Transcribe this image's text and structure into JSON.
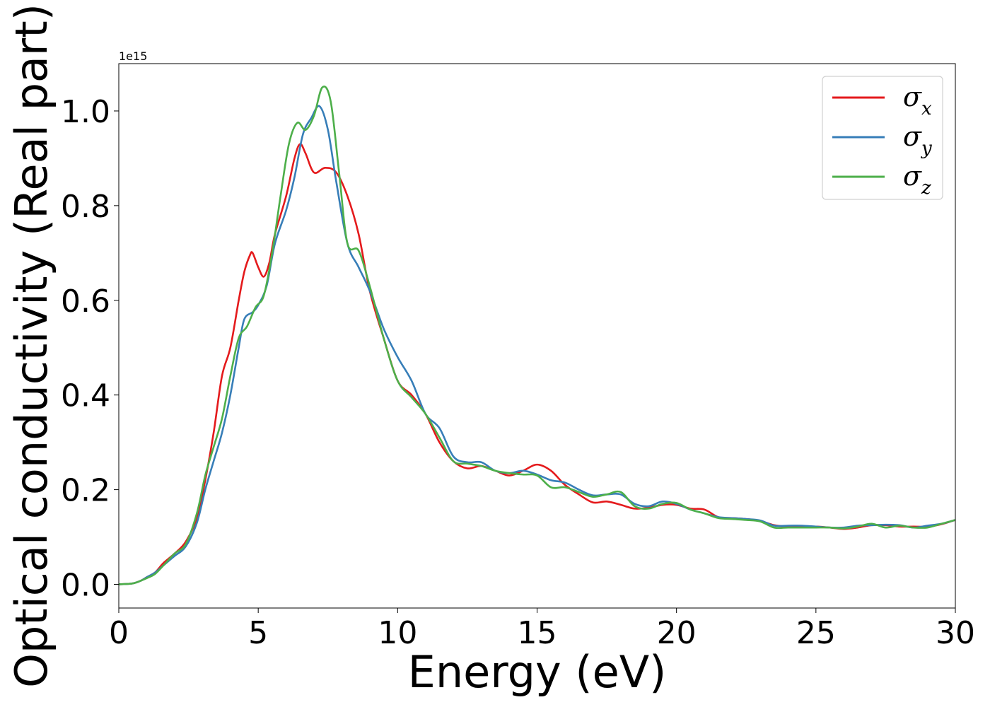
{
  "chart_data": {
    "type": "line",
    "xlabel": "Energy (eV)",
    "ylabel": "Optical conductivity (Real part)",
    "y_offset_label": "1e15",
    "xlim": [
      0,
      30
    ],
    "ylim": [
      -0.05,
      1.1
    ],
    "x_ticks": [
      0,
      5,
      10,
      15,
      20,
      25,
      30
    ],
    "x_tick_labels": [
      "0",
      "5",
      "10",
      "15",
      "20",
      "25",
      "30"
    ],
    "y_ticks": [
      0.0,
      0.2,
      0.4,
      0.6,
      0.8,
      1.0
    ],
    "y_tick_labels": [
      "0.0",
      "0.2",
      "0.4",
      "0.6",
      "0.8",
      "1.0"
    ],
    "grid": false,
    "legend_position": "top-right",
    "series": [
      {
        "name": "σx",
        "symbol": "σ",
        "subscript": "x",
        "color": "#e41a1c",
        "x": [
          0,
          0.5,
          0.8,
          1.0,
          1.3,
          1.6,
          2.0,
          2.4,
          2.8,
          3.1,
          3.4,
          3.7,
          4.0,
          4.3,
          4.5,
          4.7,
          4.8,
          5.0,
          5.2,
          5.4,
          5.6,
          6.0,
          6.3,
          6.5,
          6.7,
          7.0,
          7.4,
          7.8,
          8.2,
          8.6,
          9.0,
          9.5,
          10.0,
          10.5,
          11.0,
          11.5,
          12.0,
          12.5,
          13.0,
          13.5,
          14.0,
          14.5,
          15.0,
          15.5,
          16.0,
          16.5,
          17.0,
          17.5,
          18.0,
          18.5,
          19.0,
          19.5,
          20.0,
          20.5,
          21.0,
          21.5,
          22.0,
          22.5,
          23.0,
          23.5,
          24.0,
          24.5,
          25.0,
          25.5,
          26.0,
          26.5,
          27.0,
          27.5,
          28.0,
          28.5,
          29.0,
          29.5,
          30.0
        ],
        "y": [
          0.0,
          0.002,
          0.008,
          0.015,
          0.025,
          0.045,
          0.065,
          0.09,
          0.14,
          0.22,
          0.32,
          0.44,
          0.5,
          0.6,
          0.66,
          0.695,
          0.7,
          0.67,
          0.65,
          0.68,
          0.74,
          0.82,
          0.9,
          0.93,
          0.91,
          0.87,
          0.88,
          0.87,
          0.82,
          0.74,
          0.62,
          0.52,
          0.43,
          0.4,
          0.36,
          0.3,
          0.26,
          0.245,
          0.25,
          0.24,
          0.23,
          0.24,
          0.253,
          0.24,
          0.21,
          0.19,
          0.173,
          0.175,
          0.168,
          0.16,
          0.162,
          0.168,
          0.168,
          0.16,
          0.158,
          0.142,
          0.14,
          0.138,
          0.134,
          0.125,
          0.122,
          0.122,
          0.122,
          0.12,
          0.117,
          0.12,
          0.125,
          0.125,
          0.122,
          0.122,
          0.122,
          0.127,
          0.136
        ]
      },
      {
        "name": "σy",
        "symbol": "σ",
        "subscript": "y",
        "color": "#377eb8",
        "x": [
          0,
          0.5,
          0.8,
          1.0,
          1.3,
          1.6,
          2.0,
          2.4,
          2.8,
          3.1,
          3.4,
          3.7,
          4.0,
          4.3,
          4.5,
          4.8,
          5.0,
          5.3,
          5.6,
          6.0,
          6.3,
          6.6,
          6.9,
          7.2,
          7.5,
          7.8,
          8.2,
          8.6,
          9.0,
          9.5,
          10.0,
          10.5,
          11.0,
          11.5,
          12.0,
          12.5,
          13.0,
          13.5,
          14.0,
          14.5,
          15.0,
          15.5,
          16.0,
          16.5,
          17.0,
          17.5,
          18.0,
          18.5,
          19.0,
          19.5,
          20.0,
          20.5,
          21.0,
          21.5,
          22.0,
          22.5,
          23.0,
          23.5,
          24.0,
          24.5,
          25.0,
          25.5,
          26.0,
          26.5,
          27.0,
          27.5,
          28.0,
          28.5,
          29.0,
          29.5,
          30.0
        ],
        "y": [
          0.0,
          0.002,
          0.008,
          0.015,
          0.025,
          0.04,
          0.06,
          0.08,
          0.13,
          0.2,
          0.26,
          0.32,
          0.4,
          0.5,
          0.56,
          0.575,
          0.59,
          0.63,
          0.72,
          0.79,
          0.86,
          0.95,
          0.985,
          1.01,
          0.96,
          0.85,
          0.72,
          0.67,
          0.62,
          0.54,
          0.48,
          0.43,
          0.36,
          0.33,
          0.27,
          0.258,
          0.258,
          0.24,
          0.235,
          0.24,
          0.232,
          0.22,
          0.215,
          0.2,
          0.188,
          0.19,
          0.19,
          0.17,
          0.165,
          0.175,
          0.17,
          0.158,
          0.15,
          0.142,
          0.14,
          0.138,
          0.135,
          0.124,
          0.124,
          0.124,
          0.122,
          0.12,
          0.12,
          0.124,
          0.125,
          0.126,
          0.125,
          0.12,
          0.124,
          0.128,
          0.136
        ]
      },
      {
        "name": "σz",
        "symbol": "σ",
        "subscript": "z",
        "color": "#4daf4a",
        "x": [
          0,
          0.5,
          0.8,
          1.0,
          1.3,
          1.6,
          2.0,
          2.4,
          2.8,
          3.1,
          3.4,
          3.7,
          4.0,
          4.3,
          4.6,
          4.9,
          5.2,
          5.5,
          5.8,
          6.1,
          6.4,
          6.7,
          7.0,
          7.3,
          7.6,
          7.9,
          8.2,
          8.6,
          9.0,
          9.5,
          10.0,
          10.5,
          11.0,
          11.5,
          12.0,
          12.5,
          13.0,
          13.5,
          14.0,
          14.5,
          15.0,
          15.5,
          16.0,
          16.5,
          17.0,
          17.5,
          18.0,
          18.5,
          19.0,
          19.5,
          20.0,
          20.5,
          21.0,
          21.5,
          22.0,
          22.5,
          23.0,
          23.5,
          24.0,
          24.5,
          25.0,
          25.5,
          26.0,
          26.5,
          27.0,
          27.5,
          28.0,
          28.5,
          29.0,
          29.5,
          30.0
        ],
        "y": [
          0.0,
          0.002,
          0.008,
          0.013,
          0.022,
          0.04,
          0.065,
          0.085,
          0.15,
          0.23,
          0.29,
          0.35,
          0.44,
          0.52,
          0.545,
          0.585,
          0.61,
          0.7,
          0.82,
          0.93,
          0.975,
          0.96,
          0.99,
          1.05,
          1.02,
          0.87,
          0.72,
          0.705,
          0.63,
          0.52,
          0.43,
          0.395,
          0.36,
          0.31,
          0.26,
          0.255,
          0.25,
          0.24,
          0.235,
          0.232,
          0.23,
          0.205,
          0.205,
          0.195,
          0.185,
          0.19,
          0.195,
          0.165,
          0.16,
          0.17,
          0.172,
          0.158,
          0.15,
          0.14,
          0.138,
          0.136,
          0.133,
          0.12,
          0.12,
          0.12,
          0.12,
          0.12,
          0.118,
          0.122,
          0.128,
          0.12,
          0.124,
          0.12,
          0.12,
          0.128,
          0.136
        ]
      }
    ]
  }
}
